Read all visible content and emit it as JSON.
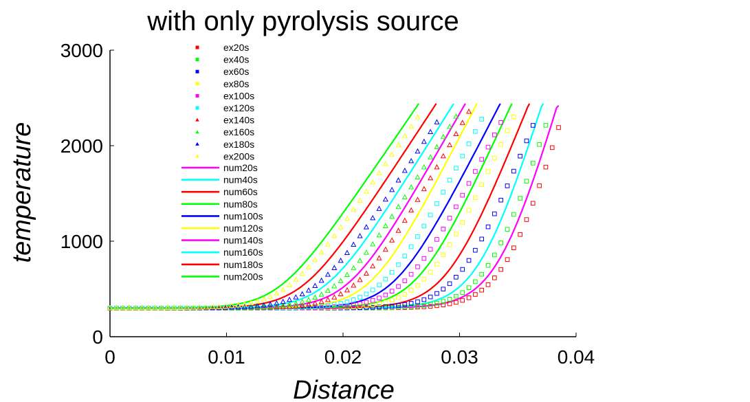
{
  "chart_data": {
    "type": "scatter",
    "title": "with only pyrolysis source",
    "xlabel": "Distance",
    "ylabel": "temperature",
    "xlim": [
      0,
      0.04
    ],
    "ylim": [
      0,
      3000
    ],
    "xticks": [
      0,
      0.01,
      0.02,
      0.03,
      0.04
    ],
    "xtick_labels": [
      "0",
      "0.01",
      "0.02",
      "0.03",
      "0.04"
    ],
    "yticks": [
      0,
      1000,
      2000,
      3000
    ],
    "ytick_labels": [
      "0",
      "1000",
      "2000",
      "3000"
    ],
    "grid": false,
    "legend_position": "upper-left",
    "experimental_series": [
      {
        "name": "ex20s",
        "marker": "square",
        "color": "#ff0000"
      },
      {
        "name": "ex40s",
        "marker": "square",
        "color": "#00ff00"
      },
      {
        "name": "ex60s",
        "marker": "square",
        "color": "#0000ff"
      },
      {
        "name": "ex80s",
        "marker": "square",
        "color": "#ffff00"
      },
      {
        "name": "ex100s",
        "marker": "square",
        "color": "#ff00ff"
      },
      {
        "name": "ex120s",
        "marker": "square",
        "color": "#00ffff"
      },
      {
        "name": "ex140s",
        "marker": "triangle",
        "color": "#ff0000"
      },
      {
        "name": "ex160s",
        "marker": "triangle",
        "color": "#00ff00"
      },
      {
        "name": "ex180s",
        "marker": "triangle",
        "color": "#0000ff"
      },
      {
        "name": "ex200s",
        "marker": "triangle",
        "color": "#ffff00"
      }
    ],
    "numerical_series": [
      {
        "name": "num20s",
        "color": "#ff00ff",
        "front_x": 0.0335,
        "end_x": 0.0385,
        "end_y": 2420
      },
      {
        "name": "num40s",
        "color": "#00ffff",
        "front_x": 0.0318,
        "end_x": 0.0372,
        "end_y": 2440
      },
      {
        "name": "num60s",
        "color": "#ff0000",
        "front_x": 0.029,
        "end_x": 0.036,
        "end_y": 2440
      },
      {
        "name": "num80s",
        "color": "#00ff00",
        "front_x": 0.0265,
        "end_x": 0.0345,
        "end_y": 2440
      },
      {
        "name": "num100s",
        "color": "#0000ff",
        "front_x": 0.0245,
        "end_x": 0.0335,
        "end_y": 2440
      },
      {
        "name": "num120s",
        "color": "#ffff00",
        "front_x": 0.0225,
        "end_x": 0.0315,
        "end_y": 2440
      },
      {
        "name": "num140s",
        "color": "#ff00ff",
        "front_x": 0.0205,
        "end_x": 0.0305,
        "end_y": 2440
      },
      {
        "name": "num160s",
        "color": "#00ffff",
        "front_x": 0.0185,
        "end_x": 0.0295,
        "end_y": 2440
      },
      {
        "name": "num180s",
        "color": "#ff0000",
        "front_x": 0.0165,
        "end_x": 0.028,
        "end_y": 2440
      },
      {
        "name": "num200s",
        "color": "#00ff00",
        "front_x": 0.0145,
        "end_x": 0.0265,
        "end_y": 2440
      }
    ],
    "baseline_temperature": 300
  }
}
